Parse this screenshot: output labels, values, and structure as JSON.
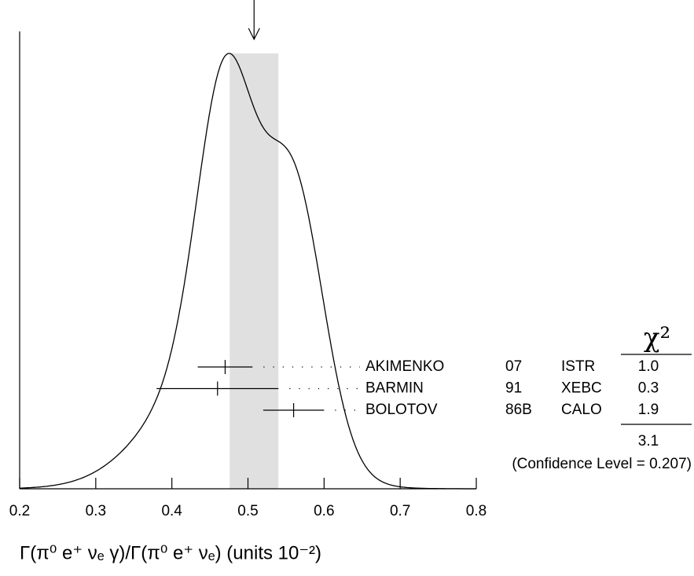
{
  "chart_data": {
    "type": "ideogram",
    "xlabel": "Γ(π⁰ e⁺ νₑ γ)/Γ(π⁰ e⁺ νₑ)  (units 10⁻²)",
    "xlim": [
      0.2,
      0.8
    ],
    "xticks": [
      0.2,
      0.3,
      0.4,
      0.5,
      0.6,
      0.7,
      0.8
    ],
    "average": {
      "value": 0.508,
      "error": 0.032
    },
    "band_color": "#e0e0e0",
    "chi2_header": "χ²",
    "measurements": [
      {
        "name": "AKIMENKO",
        "year": "07",
        "technique": "ISTR",
        "value": 0.47,
        "error": 0.036,
        "chi2": {
          "value": 1.0,
          "label": "1.0"
        }
      },
      {
        "name": "BARMIN",
        "year": "91",
        "technique": "XEBC",
        "value": 0.46,
        "error": 0.08,
        "chi2": 0.3
      },
      {
        "name": "BOLOTOV",
        "year": "86B",
        "technique": "CALO",
        "value": 0.56,
        "error": 0.04,
        "chi2": 1.9
      }
    ],
    "chi2_total": 3.1,
    "confidence_label": "(Confidence Level = 0.207)"
  }
}
